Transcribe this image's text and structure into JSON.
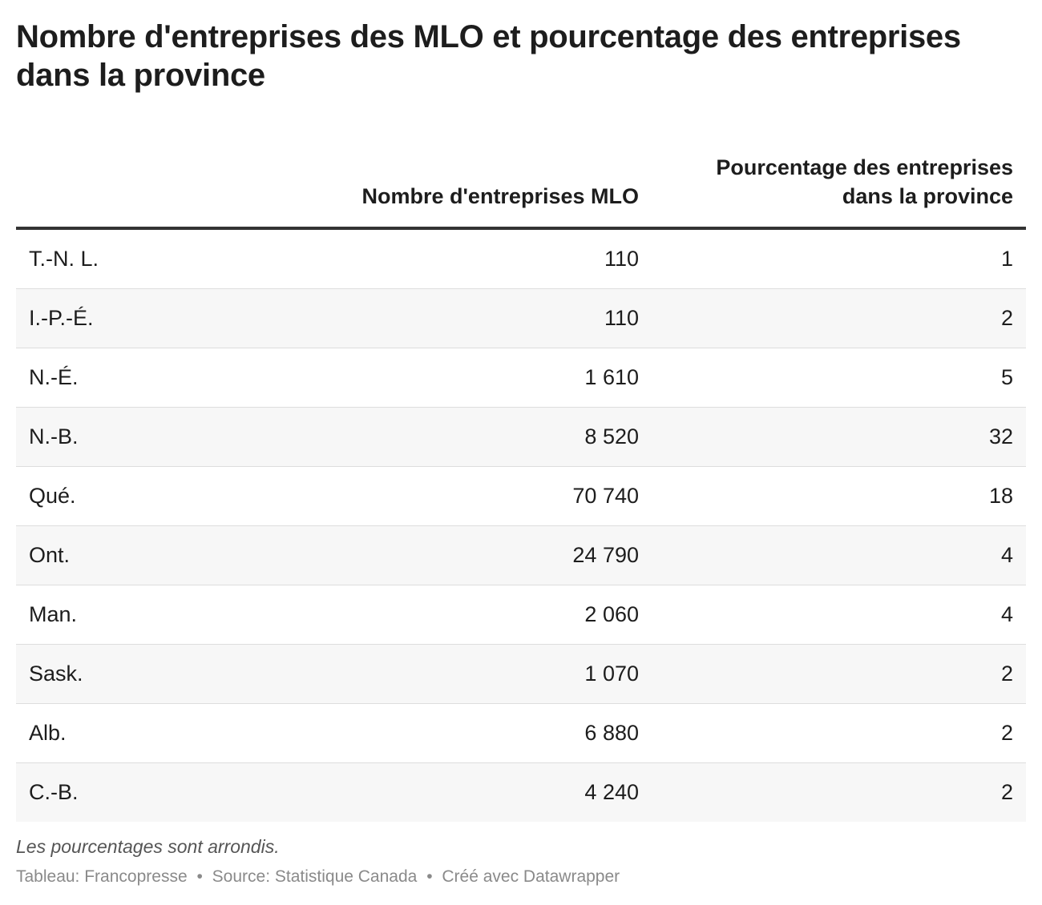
{
  "title": "Nombre d'entreprises des MLO et pourcentage des entreprises dans la province",
  "notes": "Les pourcentages sont arrondis.",
  "footer": {
    "table_credit": "Tableau: Francopresse",
    "separator": "•",
    "source": "Source: Statistique Canada",
    "created_with": "Créé avec Datawrapper"
  },
  "chart_data": {
    "type": "table",
    "title": "Nombre d'entreprises des MLO et pourcentage des entreprises dans la province",
    "columns": [
      "",
      "Nombre d'entreprises MLO",
      "Pourcentage des entreprises dans la province"
    ],
    "rows": [
      {
        "province": "T.-N. L.",
        "entreprises": "110",
        "pourcentage": "1"
      },
      {
        "province": "I.-P.-É.",
        "entreprises": "110",
        "pourcentage": "2"
      },
      {
        "province": "N.-É.",
        "entreprises": "1 610",
        "pourcentage": "5"
      },
      {
        "province": "N.-B.",
        "entreprises": "8 520",
        "pourcentage": "32"
      },
      {
        "province": "Qué.",
        "entreprises": "70 740",
        "pourcentage": "18"
      },
      {
        "province": "Ont.",
        "entreprises": "24 790",
        "pourcentage": "4"
      },
      {
        "province": "Man.",
        "entreprises": "2 060",
        "pourcentage": "4"
      },
      {
        "province": "Sask.",
        "entreprises": "1 070",
        "pourcentage": "2"
      },
      {
        "province": "Alb.",
        "entreprises": "6 880",
        "pourcentage": "2"
      },
      {
        "province": "C.-B.",
        "entreprises": "4 240",
        "pourcentage": "2"
      }
    ]
  }
}
